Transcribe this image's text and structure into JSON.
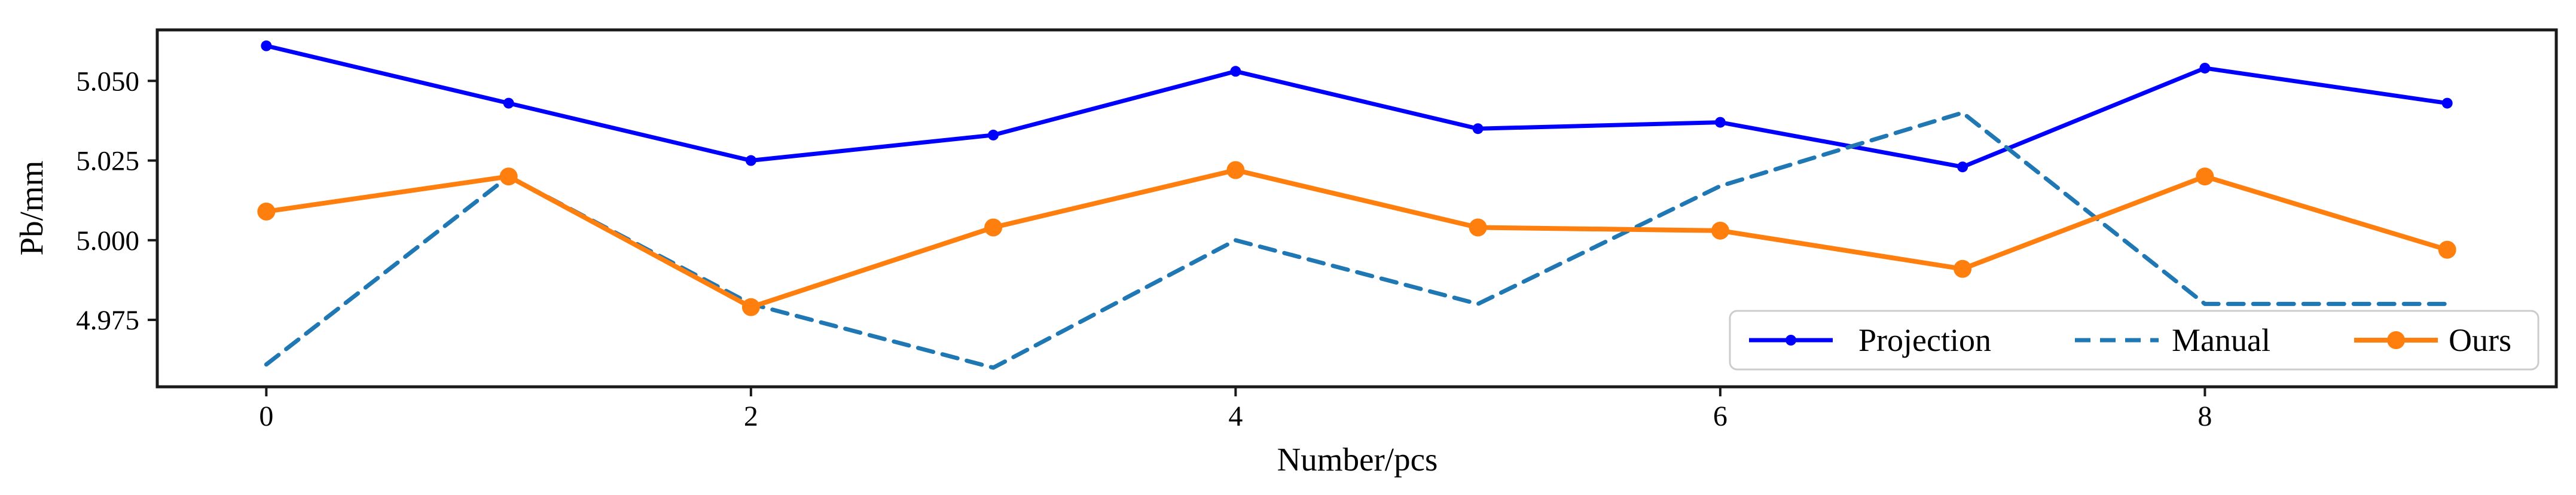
{
  "figure": {
    "xlabel": "Number/pcs",
    "ylabel": "Pb/mm"
  },
  "chart_data": {
    "type": "line",
    "x": [
      0,
      1,
      2,
      3,
      4,
      5,
      6,
      7,
      8,
      9
    ],
    "series": [
      {
        "name": "Projection",
        "color": "#0000ff",
        "style": "solid",
        "line_width": 7,
        "marker": "circle",
        "marker_radius": 9,
        "values": [
          5.061,
          5.043,
          5.025,
          5.033,
          5.053,
          5.035,
          5.037,
          5.023,
          5.054,
          5.043
        ]
      },
      {
        "name": "Manual",
        "color": "#1f77b4",
        "style": "dashed",
        "line_width": 7,
        "marker": "none",
        "marker_radius": 0,
        "values": [
          4.961,
          5.02,
          4.98,
          4.96,
          5.0,
          4.98,
          5.017,
          5.04,
          4.98,
          4.98
        ]
      },
      {
        "name": "Ours",
        "color": "#ff7f0e",
        "style": "solid",
        "line_width": 8,
        "marker": "circle",
        "marker_radius": 15,
        "values": [
          5.009,
          5.02,
          4.979,
          5.004,
          5.022,
          5.004,
          5.003,
          4.991,
          5.02,
          4.997
        ]
      }
    ],
    "xlabel": "Number/pcs",
    "ylabel": "Pb/mm",
    "x_ticks": [
      0,
      2,
      4,
      6,
      8
    ],
    "y_ticks": [
      {
        "value": 4.975,
        "label": "4.975"
      },
      {
        "value": 5.0,
        "label": "5.000"
      },
      {
        "value": 5.025,
        "label": "5.025"
      },
      {
        "value": 5.05,
        "label": "5.050"
      }
    ],
    "xlim": [
      -0.45,
      9.45
    ],
    "ylim": [
      4.954,
      5.066
    ],
    "grid": false,
    "legend": {
      "position": "lower-right-inside",
      "entries": [
        "Projection",
        "Manual",
        "Ours"
      ]
    },
    "spine_color": "#1a1a1a",
    "legend_border_color": "#cccccc"
  }
}
